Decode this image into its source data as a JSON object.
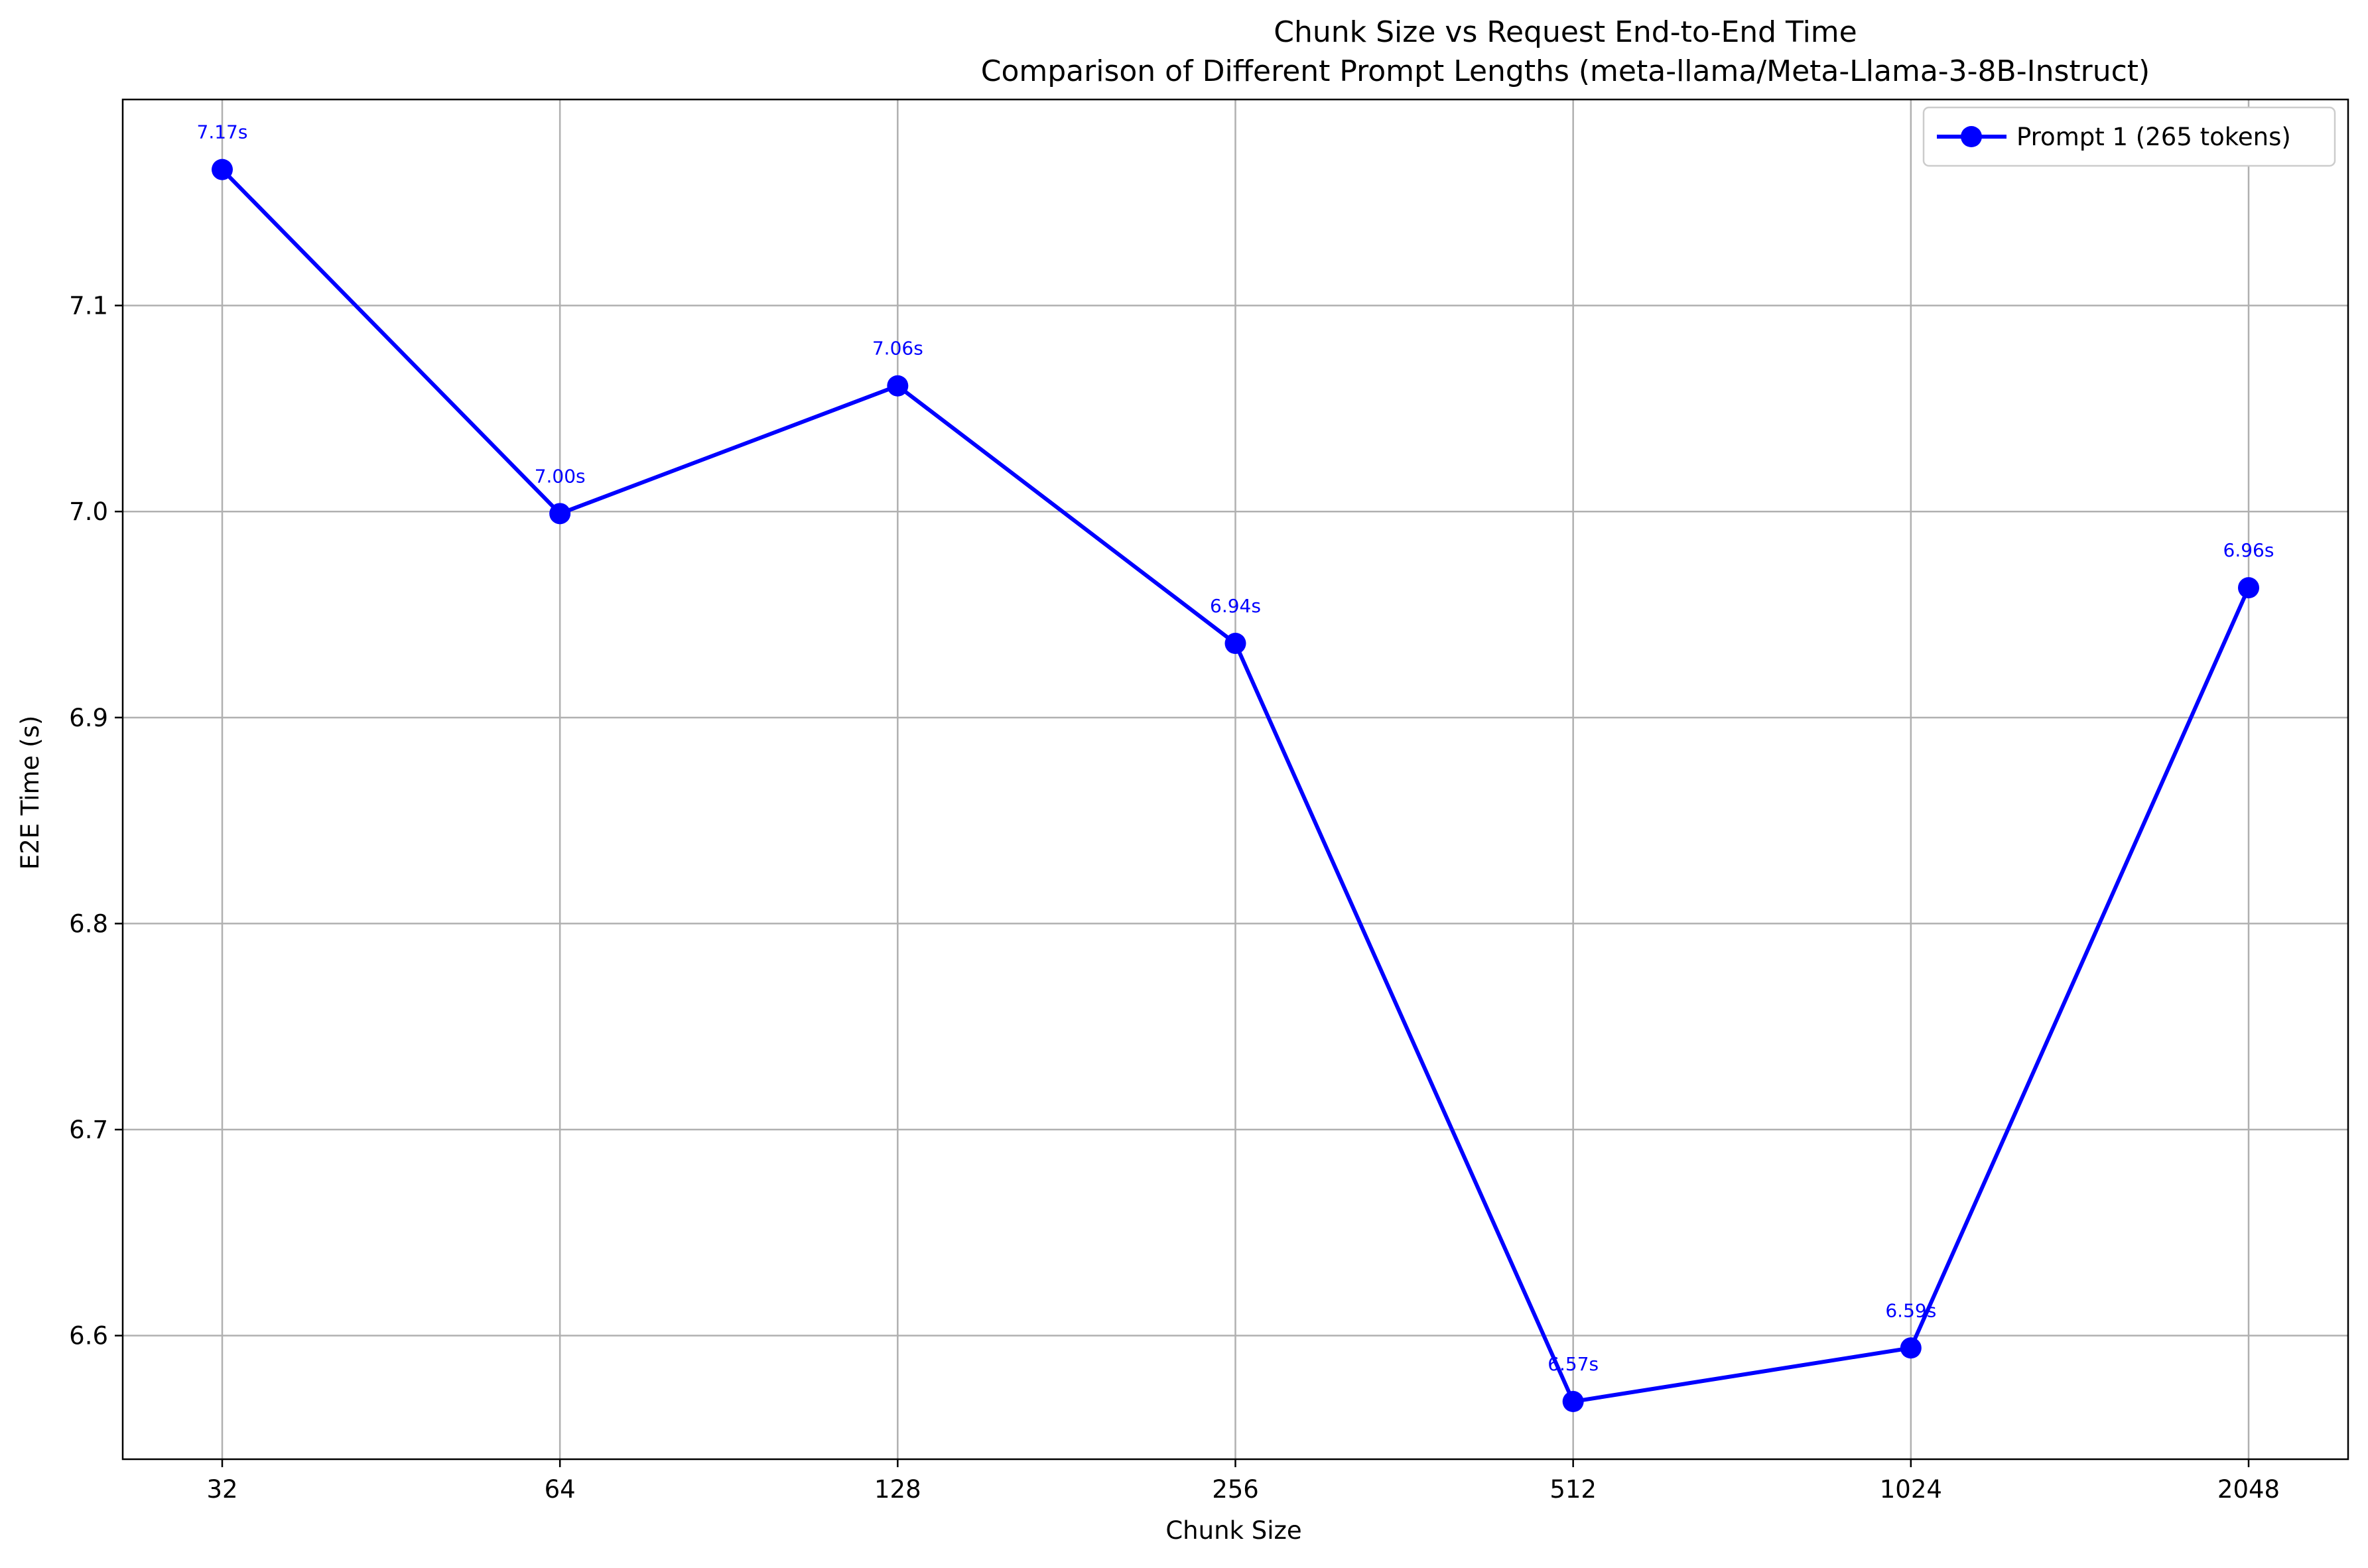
{
  "chart_data": {
    "type": "line",
    "title": "Chunk Size vs Request End-to-End Time",
    "subtitle": "Comparison of Different Prompt Lengths (meta-llama/Meta-Llama-3-8B-Instruct)",
    "xlabel": "Chunk Size",
    "ylabel": "E2E Time (s)",
    "categories": [
      "32",
      "64",
      "128",
      "256",
      "512",
      "1024",
      "2048"
    ],
    "yticks": [
      "6.6",
      "6.7",
      "6.8",
      "6.9",
      "7.0",
      "7.1"
    ],
    "ylim": [
      6.54,
      7.2
    ],
    "grid": true,
    "legend_position": "top-right",
    "series": [
      {
        "name": "Prompt 1 (265 tokens)",
        "color": "#0000ff",
        "values": [
          7.166,
          6.999,
          7.061,
          6.936,
          6.568,
          6.594,
          6.963
        ],
        "labels": [
          "7.17s",
          "7.00s",
          "7.06s",
          "6.94s",
          "6.57s",
          "6.59s",
          "6.96s"
        ]
      }
    ]
  }
}
